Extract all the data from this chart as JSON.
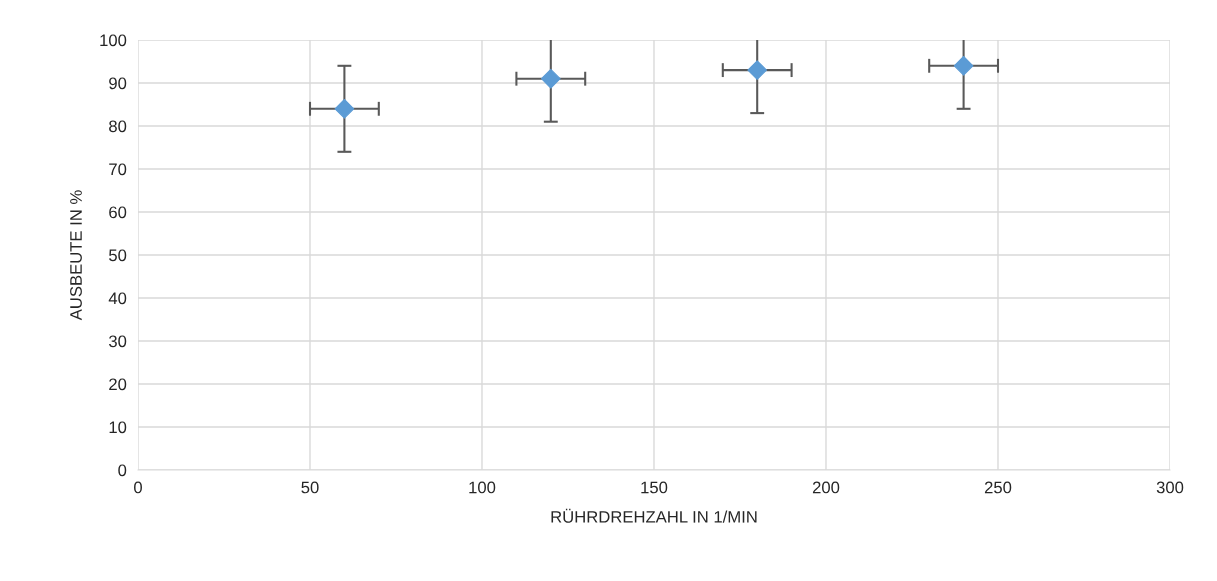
{
  "chart_data": {
    "type": "scatter",
    "xlabel": "RÜHRDREHZAHL IN 1/MIN",
    "ylabel": "AUSBEUTE IN %",
    "x": [
      60,
      120,
      180,
      240
    ],
    "series": [
      {
        "color": "#5b9bd5",
        "values": [
          84,
          91,
          93,
          94
        ],
        "errors": [
          10,
          10,
          10,
          10
        ],
        "xerrors": [
          10,
          10,
          10,
          10
        ]
      }
    ],
    "xlim": [
      0,
      300
    ],
    "xticks": [
      0,
      50,
      100,
      150,
      200,
      250,
      300
    ],
    "ylim": [
      0,
      100
    ],
    "yticks": [
      0,
      10,
      20,
      30,
      40,
      50,
      60,
      70,
      80,
      90,
      100
    ],
    "grid": true,
    "marker": "diamond",
    "legend": false
  }
}
